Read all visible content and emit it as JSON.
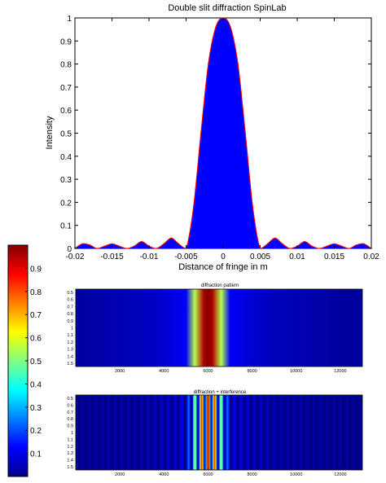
{
  "chart_data": [
    {
      "type": "area",
      "title": "Double slit diffraction  SpinLab",
      "xlabel": "Distance of fringe in m",
      "ylabel": "Intensity",
      "xlim": [
        -0.02,
        0.02
      ],
      "ylim": [
        0,
        1
      ],
      "xticks": [
        "-0.02",
        "-0.015",
        "-0.01",
        "-0.005",
        "0",
        "0.005",
        "0.01",
        "0.015",
        "0.02"
      ],
      "yticks": [
        "0",
        "0.1",
        "0.2",
        "0.3",
        "0.4",
        "0.5",
        "0.6",
        "0.7",
        "0.8",
        "0.9",
        "1"
      ],
      "fill_color": "#0000ff",
      "line_color": "#ff0000",
      "x": [
        -0.02,
        -0.019,
        -0.018,
        -0.017,
        -0.016,
        -0.015,
        -0.014,
        -0.013,
        -0.012,
        -0.011,
        -0.01,
        -0.009,
        -0.008,
        -0.007,
        -0.006,
        -0.005,
        -0.004,
        -0.003,
        -0.002,
        -0.001,
        0,
        0.001,
        0.002,
        0.003,
        0.004,
        0.005,
        0.006,
        0.007,
        0.008,
        0.009,
        0.01,
        0.011,
        0.012,
        0.013,
        0.014,
        0.015,
        0.016,
        0.017,
        0.018,
        0.019,
        0.02
      ],
      "values": [
        0.0,
        0.02,
        0.015,
        0.0,
        0.01,
        0.02,
        0.01,
        0.0,
        0.01,
        0.03,
        0.01,
        0.0,
        0.02,
        0.045,
        0.02,
        0.0,
        0.18,
        0.5,
        0.8,
        0.96,
        1.0,
        0.96,
        0.8,
        0.5,
        0.18,
        0.0,
        0.02,
        0.045,
        0.02,
        0.0,
        0.01,
        0.03,
        0.01,
        0.0,
        0.01,
        0.02,
        0.01,
        0.0,
        0.015,
        0.02,
        0.0
      ],
      "grid": false
    },
    {
      "type": "heatmap",
      "title": "diffraction pattern",
      "xticks": [
        "2000",
        "4000",
        "6000",
        "8000",
        "10000",
        "12000"
      ],
      "yticks": [
        "0.5",
        "0.6",
        "0.7",
        "0.8",
        "0.9",
        "1",
        "1.1",
        "1.2",
        "1.3",
        "1.4",
        "1.5"
      ],
      "profile_x": [
        0,
        1000,
        2000,
        3000,
        4000,
        5000,
        5400,
        5800,
        6000,
        6200,
        6600,
        7000,
        8000,
        9000,
        10000,
        11000,
        12000,
        13000
      ],
      "profile_values": [
        0.03,
        0.04,
        0.05,
        0.06,
        0.08,
        0.12,
        0.55,
        0.95,
        1.0,
        0.95,
        0.55,
        0.12,
        0.08,
        0.06,
        0.05,
        0.04,
        0.03,
        0.03
      ]
    },
    {
      "type": "heatmap",
      "title": "diffraction + interference",
      "xticks": [
        "2000",
        "4000",
        "6000",
        "8000",
        "10000",
        "12000"
      ],
      "yticks": [
        "0.5",
        "0.6",
        "0.7",
        "0.8",
        "0.9",
        "1",
        "1.1",
        "1.2",
        "1.3",
        "1.4",
        "1.5"
      ]
    }
  ],
  "colorbar": {
    "ticks": [
      "0.1",
      "0.2",
      "0.3",
      "0.4",
      "0.5",
      "0.6",
      "0.7",
      "0.8",
      "0.9"
    ],
    "range": [
      0,
      1
    ]
  }
}
